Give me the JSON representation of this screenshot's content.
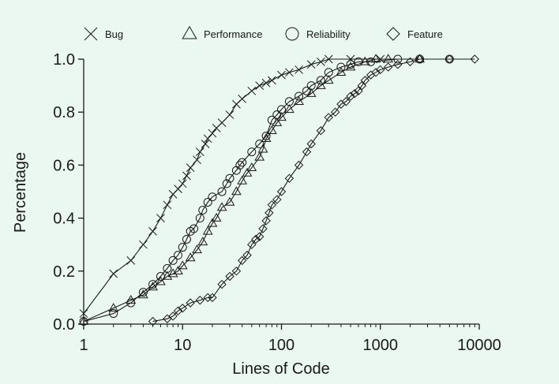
{
  "chart_data": {
    "type": "line",
    "title": "",
    "xlabel": "Lines of Code",
    "ylabel": "Percentage",
    "x_scale": "log",
    "xlim": [
      1,
      10000
    ],
    "ylim": [
      0,
      1
    ],
    "x_ticks": [
      1,
      10,
      100,
      1000,
      10000
    ],
    "x_tick_labels": [
      "1",
      "10",
      "100",
      "1000",
      "10000"
    ],
    "y_ticks": [
      0,
      0.2,
      0.4,
      0.6,
      0.8,
      1
    ],
    "y_tick_labels": [
      "0.0",
      "0.2",
      "0.4",
      "0.6",
      "0.8",
      "1.0"
    ],
    "grid": false,
    "legend_position": "top",
    "line_color": "#1a1a1a",
    "series": [
      {
        "name": "Bug",
        "marker": "x",
        "points": [
          [
            1,
            0.04
          ],
          [
            2,
            0.19
          ],
          [
            3,
            0.24
          ],
          [
            4,
            0.3
          ],
          [
            5,
            0.35
          ],
          [
            6,
            0.4
          ],
          [
            7,
            0.45
          ],
          [
            8,
            0.49
          ],
          [
            9,
            0.51
          ],
          [
            10,
            0.53
          ],
          [
            11,
            0.56
          ],
          [
            12,
            0.59
          ],
          [
            14,
            0.62
          ],
          [
            15,
            0.65
          ],
          [
            17,
            0.68
          ],
          [
            18,
            0.7
          ],
          [
            20,
            0.72
          ],
          [
            22,
            0.74
          ],
          [
            25,
            0.76
          ],
          [
            30,
            0.79
          ],
          [
            35,
            0.83
          ],
          [
            40,
            0.85
          ],
          [
            50,
            0.88
          ],
          [
            60,
            0.9
          ],
          [
            70,
            0.91
          ],
          [
            80,
            0.92
          ],
          [
            100,
            0.94
          ],
          [
            120,
            0.95
          ],
          [
            150,
            0.96
          ],
          [
            200,
            0.98
          ],
          [
            250,
            0.99
          ],
          [
            300,
            1.0
          ],
          [
            500,
            1.0
          ],
          [
            1000,
            1.0
          ]
        ]
      },
      {
        "name": "Performance",
        "marker": "triangle",
        "points": [
          [
            1,
            0.01
          ],
          [
            2,
            0.06
          ],
          [
            3,
            0.09
          ],
          [
            4,
            0.11
          ],
          [
            5,
            0.14
          ],
          [
            6,
            0.16
          ],
          [
            7,
            0.18
          ],
          [
            8,
            0.19
          ],
          [
            9,
            0.2
          ],
          [
            10,
            0.22
          ],
          [
            12,
            0.25
          ],
          [
            14,
            0.28
          ],
          [
            16,
            0.31
          ],
          [
            18,
            0.35
          ],
          [
            20,
            0.38
          ],
          [
            22,
            0.4
          ],
          [
            25,
            0.44
          ],
          [
            30,
            0.46
          ],
          [
            35,
            0.5
          ],
          [
            40,
            0.54
          ],
          [
            45,
            0.57
          ],
          [
            50,
            0.59
          ],
          [
            60,
            0.63
          ],
          [
            65,
            0.66
          ],
          [
            70,
            0.7
          ],
          [
            80,
            0.73
          ],
          [
            90,
            0.76
          ],
          [
            100,
            0.78
          ],
          [
            120,
            0.81
          ],
          [
            150,
            0.84
          ],
          [
            200,
            0.87
          ],
          [
            250,
            0.9
          ],
          [
            300,
            0.92
          ],
          [
            400,
            0.95
          ],
          [
            500,
            0.97
          ],
          [
            700,
            0.99
          ],
          [
            900,
            1.0
          ],
          [
            1200,
            1.0
          ],
          [
            2500,
            1.0
          ]
        ]
      },
      {
        "name": "Reliability",
        "marker": "circle",
        "points": [
          [
            1,
            0.01
          ],
          [
            2,
            0.04
          ],
          [
            3,
            0.08
          ],
          [
            4,
            0.12
          ],
          [
            5,
            0.15
          ],
          [
            6,
            0.18
          ],
          [
            7,
            0.21
          ],
          [
            8,
            0.24
          ],
          [
            9,
            0.26
          ],
          [
            10,
            0.29
          ],
          [
            11,
            0.32
          ],
          [
            12,
            0.35
          ],
          [
            13,
            0.36
          ],
          [
            15,
            0.4
          ],
          [
            16,
            0.43
          ],
          [
            18,
            0.46
          ],
          [
            20,
            0.48
          ],
          [
            25,
            0.5
          ],
          [
            28,
            0.53
          ],
          [
            30,
            0.55
          ],
          [
            35,
            0.58
          ],
          [
            38,
            0.6
          ],
          [
            40,
            0.61
          ],
          [
            50,
            0.65
          ],
          [
            60,
            0.68
          ],
          [
            70,
            0.71
          ],
          [
            80,
            0.77
          ],
          [
            90,
            0.79
          ],
          [
            100,
            0.81
          ],
          [
            120,
            0.84
          ],
          [
            150,
            0.86
          ],
          [
            180,
            0.88
          ],
          [
            200,
            0.9
          ],
          [
            250,
            0.92
          ],
          [
            300,
            0.95
          ],
          [
            400,
            0.97
          ],
          [
            500,
            0.98
          ],
          [
            600,
            0.99
          ],
          [
            800,
            0.99
          ],
          [
            1500,
            1.0
          ],
          [
            2500,
            1.0
          ],
          [
            5000,
            1.0
          ]
        ]
      },
      {
        "name": "Feature",
        "marker": "diamond",
        "points": [
          [
            5,
            0.01
          ],
          [
            7,
            0.02
          ],
          [
            8,
            0.03
          ],
          [
            9,
            0.05
          ],
          [
            10,
            0.06
          ],
          [
            12,
            0.08
          ],
          [
            15,
            0.09
          ],
          [
            18,
            0.1
          ],
          [
            20,
            0.1
          ],
          [
            25,
            0.15
          ],
          [
            30,
            0.18
          ],
          [
            35,
            0.2
          ],
          [
            40,
            0.24
          ],
          [
            45,
            0.26
          ],
          [
            50,
            0.3
          ],
          [
            55,
            0.32
          ],
          [
            60,
            0.33
          ],
          [
            65,
            0.36
          ],
          [
            70,
            0.39
          ],
          [
            75,
            0.42
          ],
          [
            80,
            0.45
          ],
          [
            90,
            0.47
          ],
          [
            100,
            0.5
          ],
          [
            120,
            0.55
          ],
          [
            150,
            0.6
          ],
          [
            180,
            0.65
          ],
          [
            200,
            0.68
          ],
          [
            250,
            0.73
          ],
          [
            300,
            0.78
          ],
          [
            350,
            0.8
          ],
          [
            400,
            0.83
          ],
          [
            450,
            0.84
          ],
          [
            500,
            0.86
          ],
          [
            550,
            0.87
          ],
          [
            600,
            0.88
          ],
          [
            650,
            0.9
          ],
          [
            700,
            0.92
          ],
          [
            800,
            0.94
          ],
          [
            900,
            0.95
          ],
          [
            1000,
            0.96
          ],
          [
            1200,
            0.97
          ],
          [
            1500,
            0.98
          ],
          [
            2000,
            0.99
          ],
          [
            2500,
            1.0
          ],
          [
            5000,
            1.0
          ],
          [
            9000,
            1.0
          ]
        ]
      }
    ]
  }
}
